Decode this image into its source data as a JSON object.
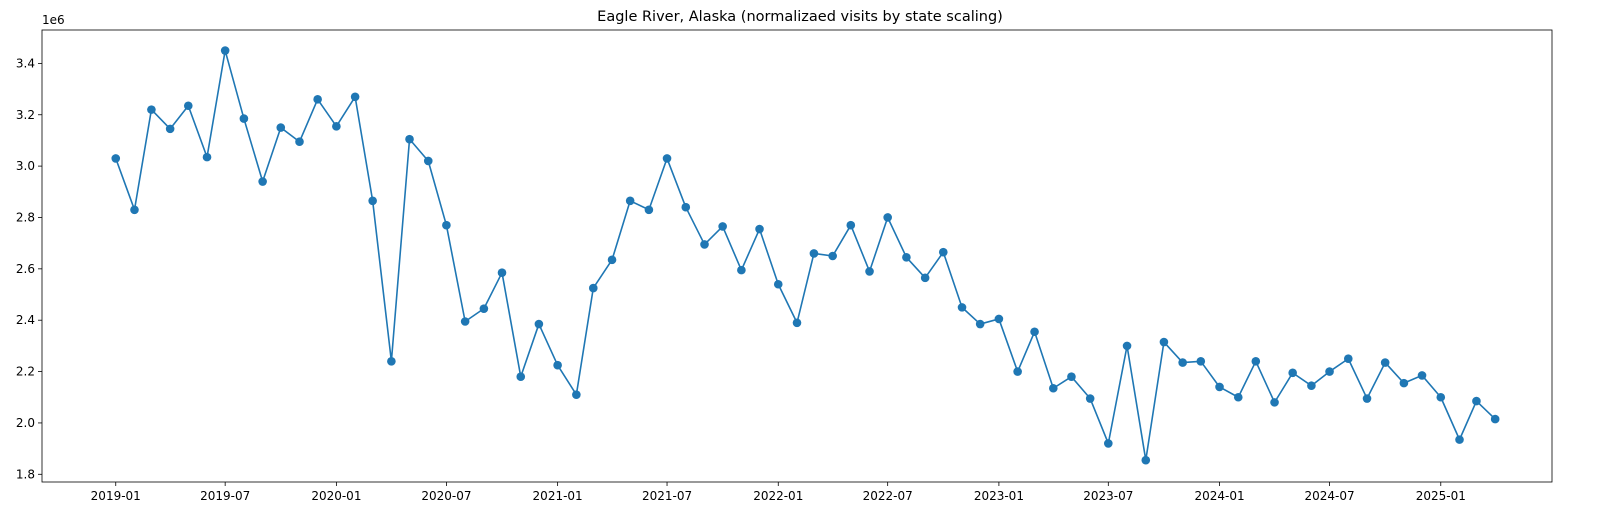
{
  "chart_data": {
    "type": "line",
    "title": "Eagle River, Alaska (normalizaed visits by state scaling)",
    "xlabel": "",
    "ylabel": "",
    "y_offset_label": "1e6",
    "x_tick_labels": [
      "2019-01",
      "2019-07",
      "2020-01",
      "2020-07",
      "2021-01",
      "2021-07",
      "2022-01",
      "2022-07",
      "2023-01",
      "2023-07",
      "2024-01",
      "2024-07",
      "2025-01"
    ],
    "y_tick_labels": [
      "1.8",
      "2.0",
      "2.2",
      "2.4",
      "2.6",
      "2.8",
      "3.0",
      "3.2",
      "3.4"
    ],
    "y_ticks": [
      1800000,
      2000000,
      2200000,
      2400000,
      2600000,
      2800000,
      3000000,
      3200000,
      3400000
    ],
    "xlim": [
      "2018-09-01",
      "2025-07-04"
    ],
    "ylim": [
      1770000,
      3530000
    ],
    "grid": false,
    "color": "#1f77b4",
    "series": [
      {
        "x": [
          "2019-01",
          "2019-02",
          "2019-03",
          "2019-04",
          "2019-05",
          "2019-06",
          "2019-07",
          "2019-08",
          "2019-09",
          "2019-10",
          "2019-11",
          "2019-12",
          "2020-01",
          "2020-02",
          "2020-03",
          "2020-04",
          "2020-05",
          "2020-06",
          "2020-07",
          "2020-08",
          "2020-09",
          "2020-10",
          "2020-11",
          "2020-12",
          "2021-01",
          "2021-02",
          "2021-03",
          "2021-04",
          "2021-05",
          "2021-06",
          "2021-07",
          "2021-08",
          "2021-09",
          "2021-10",
          "2021-11",
          "2021-12",
          "2022-01",
          "2022-02",
          "2022-03",
          "2022-04",
          "2022-05",
          "2022-06",
          "2022-07",
          "2022-08",
          "2022-09",
          "2022-10",
          "2022-11",
          "2022-12",
          "2023-01",
          "2023-02",
          "2023-03",
          "2023-04",
          "2023-05",
          "2023-06",
          "2023-07",
          "2023-08",
          "2023-09",
          "2023-10",
          "2023-11",
          "2023-12",
          "2024-01",
          "2024-02",
          "2024-03",
          "2024-04",
          "2024-05",
          "2024-06",
          "2024-07",
          "2024-08",
          "2024-09",
          "2024-10",
          "2024-11",
          "2024-12",
          "2025-01",
          "2025-02",
          "2025-03",
          "2025-04"
        ],
        "values": [
          3030000,
          2830000,
          3220000,
          3145000,
          3235000,
          3035000,
          3450000,
          3185000,
          2940000,
          3150000,
          3095000,
          3260000,
          3155000,
          3270000,
          2865000,
          2240000,
          3105000,
          3020000,
          2770000,
          2395000,
          2445000,
          2585000,
          2180000,
          2385000,
          2225000,
          2110000,
          2525000,
          2635000,
          2865000,
          2830000,
          3030000,
          2840000,
          2695000,
          2765000,
          2595000,
          2755000,
          2540000,
          2390000,
          2660000,
          2650000,
          2770000,
          2590000,
          2800000,
          2645000,
          2565000,
          2665000,
          2450000,
          2385000,
          2405000,
          2200000,
          2355000,
          2135000,
          2180000,
          2095000,
          1920000,
          2300000,
          1855000,
          2315000,
          2235000,
          2240000,
          2140000,
          2100000,
          2240000,
          2080000,
          2195000,
          2145000,
          2200000,
          2250000,
          2095000,
          2235000,
          2155000,
          2185000,
          2100000,
          1935000,
          2085000,
          2015000
        ]
      }
    ]
  }
}
